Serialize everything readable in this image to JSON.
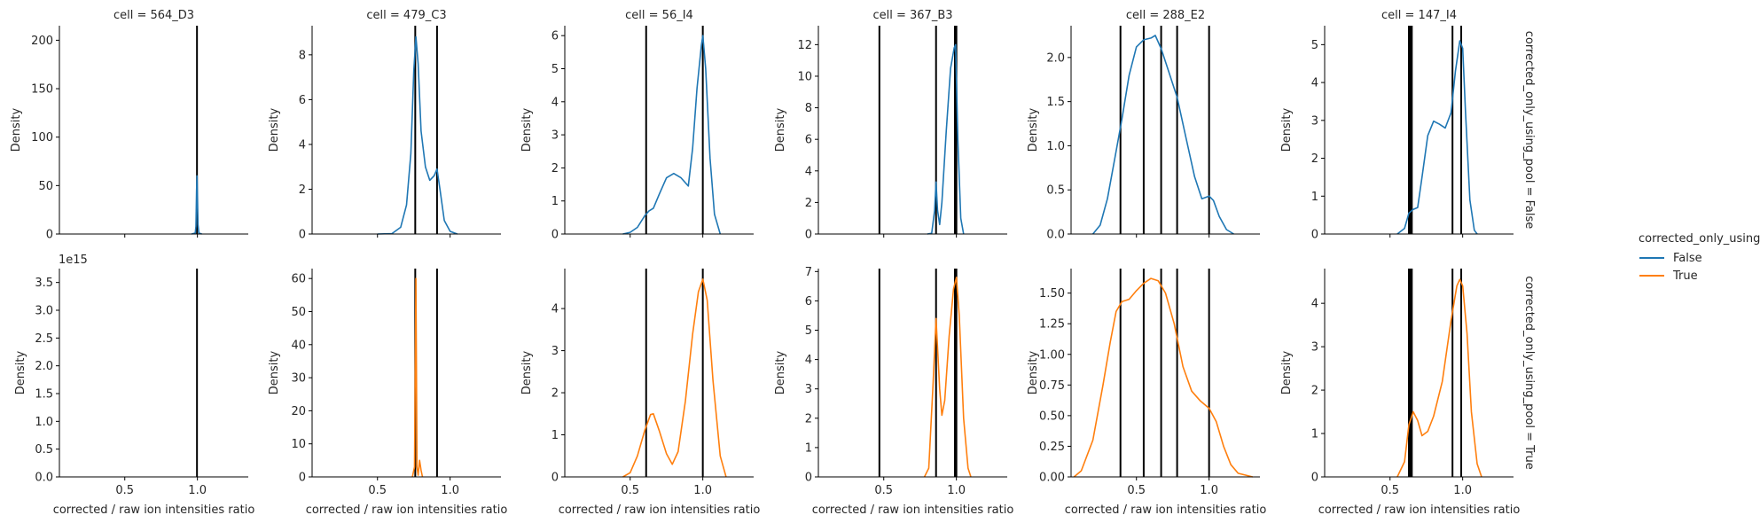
{
  "chart_data": {
    "type": "kde-facet-grid",
    "row_var": "corrected_only_using_pool",
    "col_var": "cell",
    "xlabel": "corrected / raw ion intensities ratio",
    "ylabel": "Density",
    "xlim": [
      0.05,
      1.35
    ],
    "xticks": [
      0.5,
      1.0
    ],
    "xtick_labels": [
      "0.5",
      "1.0"
    ],
    "legend": {
      "title": "corrected_only_using_pool",
      "placement": "right",
      "entries": [
        {
          "label": "False",
          "color": "#1f77b4"
        },
        {
          "label": "True",
          "color": "#ff7f0e"
        }
      ]
    },
    "rows": [
      {
        "label": "corrected_only_using_pool = False",
        "color": "#1f77b4"
      },
      {
        "label": "corrected_only_using_pool = True",
        "color": "#ff7f0e"
      }
    ],
    "panels": [
      [
        {
          "title": "cell = 564_D3",
          "ylim": [
            0,
            215
          ],
          "yticks": [
            0,
            50,
            100,
            150,
            200
          ],
          "vlines": [
            0.997
          ],
          "curve": [
            [
              0.96,
              0
            ],
            [
              0.985,
              1
            ],
            [
              0.99,
              8
            ],
            [
              0.994,
              45
            ],
            [
              0.997,
              60
            ],
            [
              1.0,
              40
            ],
            [
              1.004,
              10
            ],
            [
              1.01,
              1
            ],
            [
              1.03,
              0
            ]
          ]
        },
        {
          "title": "cell = 479_C3",
          "ylim": [
            0,
            9.3
          ],
          "yticks": [
            0,
            2,
            4,
            6,
            8
          ],
          "vlines": [
            0.76,
            0.91
          ],
          "curve": [
            [
              0.5,
              0
            ],
            [
              0.6,
              0.02
            ],
            [
              0.66,
              0.3
            ],
            [
              0.7,
              1.3
            ],
            [
              0.73,
              3.6
            ],
            [
              0.75,
              7.3
            ],
            [
              0.765,
              8.8
            ],
            [
              0.78,
              7.6
            ],
            [
              0.8,
              4.6
            ],
            [
              0.83,
              3.0
            ],
            [
              0.86,
              2.4
            ],
            [
              0.89,
              2.6
            ],
            [
              0.91,
              2.9
            ],
            [
              0.93,
              2.0
            ],
            [
              0.96,
              0.6
            ],
            [
              1.0,
              0.12
            ],
            [
              1.05,
              0
            ]
          ]
        },
        {
          "title": "cell = 56_I4",
          "ylim": [
            0,
            6.3
          ],
          "yticks": [
            0,
            1,
            2,
            3,
            4,
            5,
            6
          ],
          "vlines": [
            0.61,
            1.0
          ],
          "curve": [
            [
              0.45,
              0
            ],
            [
              0.5,
              0.05
            ],
            [
              0.55,
              0.2
            ],
            [
              0.6,
              0.55
            ],
            [
              0.63,
              0.7
            ],
            [
              0.66,
              0.78
            ],
            [
              0.7,
              1.2
            ],
            [
              0.75,
              1.7
            ],
            [
              0.8,
              1.83
            ],
            [
              0.85,
              1.7
            ],
            [
              0.9,
              1.45
            ],
            [
              0.93,
              2.6
            ],
            [
              0.96,
              4.4
            ],
            [
              0.99,
              5.7
            ],
            [
              1.0,
              6.0
            ],
            [
              1.02,
              5.0
            ],
            [
              1.05,
              2.3
            ],
            [
              1.08,
              0.6
            ],
            [
              1.12,
              0
            ]
          ]
        },
        {
          "title": "cell = 367_B3",
          "ylim": [
            0,
            13.2
          ],
          "yticks": [
            0,
            2,
            4,
            6,
            8,
            10,
            12
          ],
          "vlines": [
            0.47,
            0.86,
            0.99,
            1.0
          ],
          "curve": [
            [
              0.8,
              0
            ],
            [
              0.83,
              0.05
            ],
            [
              0.85,
              1.5
            ],
            [
              0.86,
              3.3
            ],
            [
              0.87,
              1.5
            ],
            [
              0.885,
              0.6
            ],
            [
              0.9,
              2.0
            ],
            [
              0.93,
              6.5
            ],
            [
              0.96,
              10.5
            ],
            [
              0.985,
              11.8
            ],
            [
              0.995,
              12.0
            ],
            [
              1.01,
              6.0
            ],
            [
              1.03,
              1.0
            ],
            [
              1.05,
              0
            ]
          ]
        },
        {
          "title": "cell = 288_E2",
          "ylim": [
            0,
            2.36
          ],
          "yticks": [
            0.0,
            0.5,
            1.0,
            1.5,
            2.0
          ],
          "vlines": [
            0.39,
            0.55,
            0.67,
            0.78,
            1.0
          ],
          "curve": [
            [
              0.2,
              0
            ],
            [
              0.25,
              0.1
            ],
            [
              0.3,
              0.4
            ],
            [
              0.35,
              0.85
            ],
            [
              0.4,
              1.3
            ],
            [
              0.45,
              1.8
            ],
            [
              0.5,
              2.12
            ],
            [
              0.55,
              2.2
            ],
            [
              0.6,
              2.22
            ],
            [
              0.63,
              2.25
            ],
            [
              0.67,
              2.1
            ],
            [
              0.72,
              1.85
            ],
            [
              0.78,
              1.55
            ],
            [
              0.84,
              1.1
            ],
            [
              0.9,
              0.65
            ],
            [
              0.95,
              0.4
            ],
            [
              1.0,
              0.43
            ],
            [
              1.03,
              0.38
            ],
            [
              1.07,
              0.2
            ],
            [
              1.12,
              0.05
            ],
            [
              1.17,
              0
            ]
          ]
        },
        {
          "title": "cell = 147_I4",
          "ylim": [
            0,
            5.5
          ],
          "yticks": [
            0,
            1,
            2,
            3,
            4,
            5
          ],
          "vlines": [
            0.63,
            0.64,
            0.65,
            0.93,
            0.99
          ],
          "curve": [
            [
              0.55,
              0
            ],
            [
              0.6,
              0.15
            ],
            [
              0.63,
              0.55
            ],
            [
              0.66,
              0.65
            ],
            [
              0.69,
              0.7
            ],
            [
              0.72,
              1.5
            ],
            [
              0.76,
              2.6
            ],
            [
              0.8,
              2.98
            ],
            [
              0.84,
              2.9
            ],
            [
              0.88,
              2.8
            ],
            [
              0.92,
              3.2
            ],
            [
              0.95,
              4.3
            ],
            [
              0.98,
              5.1
            ],
            [
              1.0,
              4.9
            ],
            [
              1.02,
              3.2
            ],
            [
              1.05,
              0.9
            ],
            [
              1.08,
              0.1
            ],
            [
              1.1,
              0
            ]
          ]
        }
      ],
      [
        {
          "title": "",
          "ylim": [
            0,
            3.75
          ],
          "yticks": [
            0,
            0.5,
            1.0,
            1.5,
            2.0,
            2.5,
            3.0,
            3.5
          ],
          "yoffset": "1e15",
          "vlines": [
            0.997
          ],
          "curve": []
        },
        {
          "title": "",
          "ylim": [
            0,
            63
          ],
          "yticks": [
            0,
            10,
            20,
            30,
            40,
            50,
            60
          ],
          "vlines": [
            0.76,
            0.91
          ],
          "curve": [
            [
              0.74,
              0
            ],
            [
              0.755,
              3
            ],
            [
              0.765,
              60
            ],
            [
              0.772,
              3
            ],
            [
              0.78,
              0.5
            ],
            [
              0.79,
              5
            ],
            [
              0.8,
              2
            ],
            [
              0.81,
              0
            ]
          ]
        },
        {
          "title": "",
          "ylim": [
            0,
            4.95
          ],
          "yticks": [
            0,
            1,
            2,
            3,
            4
          ],
          "vlines": [
            0.61,
            1.0
          ],
          "curve": [
            [
              0.45,
              0
            ],
            [
              0.5,
              0.1
            ],
            [
              0.55,
              0.5
            ],
            [
              0.6,
              1.1
            ],
            [
              0.64,
              1.48
            ],
            [
              0.66,
              1.5
            ],
            [
              0.7,
              1.1
            ],
            [
              0.75,
              0.55
            ],
            [
              0.79,
              0.3
            ],
            [
              0.83,
              0.6
            ],
            [
              0.88,
              1.8
            ],
            [
              0.93,
              3.4
            ],
            [
              0.97,
              4.4
            ],
            [
              1.0,
              4.7
            ],
            [
              1.03,
              4.2
            ],
            [
              1.07,
              2.3
            ],
            [
              1.12,
              0.5
            ],
            [
              1.16,
              0
            ]
          ]
        },
        {
          "title": "",
          "ylim": [
            0,
            7.1
          ],
          "yticks": [
            0,
            1,
            2,
            3,
            4,
            5,
            6,
            7
          ],
          "vlines": [
            0.47,
            0.86,
            0.99,
            1.0
          ],
          "curve": [
            [
              0.78,
              0
            ],
            [
              0.81,
              0.3
            ],
            [
              0.84,
              3.2
            ],
            [
              0.86,
              5.4
            ],
            [
              0.885,
              3.0
            ],
            [
              0.9,
              2.1
            ],
            [
              0.92,
              2.6
            ],
            [
              0.95,
              4.8
            ],
            [
              0.98,
              6.4
            ],
            [
              1.0,
              6.8
            ],
            [
              1.02,
              5.5
            ],
            [
              1.05,
              2.0
            ],
            [
              1.08,
              0.3
            ],
            [
              1.1,
              0
            ]
          ]
        },
        {
          "title": "",
          "ylim": [
            0,
            1.7
          ],
          "yticks": [
            0.0,
            0.25,
            0.5,
            0.75,
            1.0,
            1.25,
            1.5
          ],
          "vlines": [
            0.39,
            0.55,
            0.67,
            0.78,
            1.0
          ],
          "curve": [
            [
              0.07,
              0
            ],
            [
              0.12,
              0.05
            ],
            [
              0.2,
              0.3
            ],
            [
              0.27,
              0.75
            ],
            [
              0.32,
              1.1
            ],
            [
              0.36,
              1.35
            ],
            [
              0.4,
              1.43
            ],
            [
              0.45,
              1.45
            ],
            [
              0.5,
              1.52
            ],
            [
              0.55,
              1.58
            ],
            [
              0.6,
              1.62
            ],
            [
              0.65,
              1.6
            ],
            [
              0.7,
              1.5
            ],
            [
              0.76,
              1.25
            ],
            [
              0.82,
              0.9
            ],
            [
              0.88,
              0.7
            ],
            [
              0.94,
              0.62
            ],
            [
              1.0,
              0.56
            ],
            [
              1.05,
              0.45
            ],
            [
              1.1,
              0.25
            ],
            [
              1.15,
              0.1
            ],
            [
              1.2,
              0.03
            ],
            [
              1.3,
              0
            ]
          ]
        },
        {
          "title": "",
          "ylim": [
            0,
            4.8
          ],
          "yticks": [
            0,
            1,
            2,
            3,
            4
          ],
          "vlines": [
            0.63,
            0.64,
            0.65,
            0.93,
            0.99
          ],
          "curve": [
            [
              0.55,
              0
            ],
            [
              0.6,
              0.35
            ],
            [
              0.63,
              1.2
            ],
            [
              0.66,
              1.5
            ],
            [
              0.69,
              1.3
            ],
            [
              0.72,
              0.95
            ],
            [
              0.76,
              1.05
            ],
            [
              0.8,
              1.4
            ],
            [
              0.86,
              2.2
            ],
            [
              0.92,
              3.6
            ],
            [
              0.96,
              4.4
            ],
            [
              0.98,
              4.55
            ],
            [
              1.0,
              4.4
            ],
            [
              1.03,
              3.3
            ],
            [
              1.06,
              1.5
            ],
            [
              1.1,
              0.3
            ],
            [
              1.13,
              0
            ]
          ]
        }
      ]
    ]
  }
}
